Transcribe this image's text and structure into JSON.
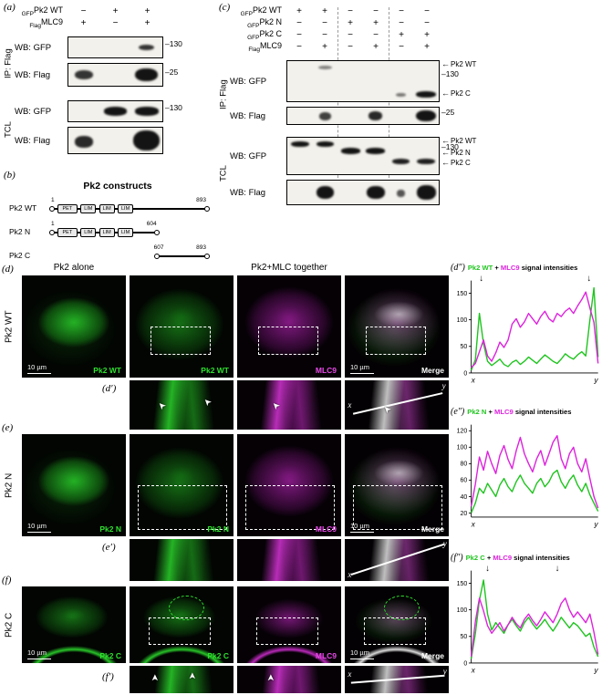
{
  "colors": {
    "green": "#1fc41f",
    "magenta": "#dd22dd"
  },
  "panel_a": {
    "tag": "(a)",
    "header_rows": [
      {
        "sub": "GFP",
        "name": "Pk2 WT",
        "signs": [
          "−",
          "+",
          "+"
        ]
      },
      {
        "sub": "Flag",
        "name": "MLC9",
        "signs": [
          "+",
          "−",
          "+"
        ]
      }
    ],
    "groups": [
      {
        "name": "IP: Flag",
        "blots": [
          {
            "label": "WB: GFP",
            "lanes": 3,
            "bands": [
              {
                "lane": 2,
                "rel_y": 0.5,
                "w": 0.5,
                "h": 0.3,
                "alpha": 0.85
              }
            ],
            "annotations": [
              {
                "kind": "marker",
                "text": "–130",
                "y": 0.3
              }
            ]
          },
          {
            "label": "WB: Flag",
            "lanes": 3,
            "bands": [
              {
                "lane": 0,
                "rel_y": 0.5,
                "w": 0.6,
                "h": 0.42,
                "alpha": 0.85
              },
              {
                "lane": 2,
                "rel_y": 0.5,
                "w": 0.72,
                "h": 0.6,
                "alpha": 1
              }
            ],
            "annotations": [
              {
                "kind": "marker",
                "text": "–25",
                "y": 0.35
              }
            ]
          }
        ]
      },
      {
        "name": "TCL",
        "blots": [
          {
            "label": "WB: GFP",
            "lanes": 3,
            "bands": [
              {
                "lane": 1,
                "rel_y": 0.5,
                "w": 0.75,
                "h": 0.42,
                "alpha": 1
              },
              {
                "lane": 2,
                "rel_y": 0.5,
                "w": 0.75,
                "h": 0.42,
                "alpha": 1
              }
            ],
            "annotations": [
              {
                "kind": "marker",
                "text": "–130",
                "y": 0.3
              }
            ]
          },
          {
            "label": "WB: Flag",
            "lanes": 3,
            "bands": [
              {
                "lane": 0,
                "rel_y": 0.55,
                "w": 0.6,
                "h": 0.45,
                "alpha": 0.9
              },
              {
                "lane": 2,
                "rel_y": 0.5,
                "w": 0.85,
                "h": 0.8,
                "alpha": 1
              }
            ],
            "annotations": []
          }
        ]
      }
    ]
  },
  "panel_b": {
    "tag": "(b)",
    "title": "Pk2 constructs",
    "constructs": [
      {
        "name": "Pk2 WT",
        "start": "1",
        "end": "893",
        "from": 0,
        "to": 1,
        "domains": [
          {
            "t": "PET",
            "f": 0.04,
            "w": 0.13
          },
          {
            "t": "LIM",
            "f": 0.19,
            "w": 0.1
          },
          {
            "t": "LIM",
            "f": 0.31,
            "w": 0.1
          },
          {
            "t": "LIM",
            "f": 0.43,
            "w": 0.1
          }
        ]
      },
      {
        "name": "Pk2 N",
        "start": "1",
        "end": "604",
        "from": 0,
        "to": 0.68,
        "domains": [
          {
            "t": "PET",
            "f": 0.04,
            "w": 0.13
          },
          {
            "t": "LIM",
            "f": 0.19,
            "w": 0.1
          },
          {
            "t": "LIM",
            "f": 0.31,
            "w": 0.1
          },
          {
            "t": "LIM",
            "f": 0.43,
            "w": 0.1
          }
        ]
      },
      {
        "name": "Pk2 C",
        "start": "607",
        "end": "893",
        "from": 0.68,
        "to": 1,
        "domains": []
      }
    ]
  },
  "panel_c": {
    "tag": "(c)",
    "header_rows": [
      {
        "sub": "GFP",
        "name": "Pk2 WT",
        "signs": [
          "+",
          "+",
          "−",
          "−",
          "−",
          "−"
        ]
      },
      {
        "sub": "GFP",
        "name": "Pk2 N",
        "signs": [
          "−",
          "−",
          "+",
          "+",
          "−",
          "−"
        ]
      },
      {
        "sub": "GFP",
        "name": "Pk2 C",
        "signs": [
          "−",
          "−",
          "−",
          "−",
          "+",
          "+"
        ]
      },
      {
        "sub": "Flag",
        "name": "MLC9",
        "signs": [
          "−",
          "+",
          "−",
          "+",
          "−",
          "+"
        ]
      }
    ],
    "groups": [
      {
        "name": "IP: Flag",
        "blots": [
          {
            "label": "WB: GFP",
            "lanes": 6,
            "bands": [
              {
                "lane": 1,
                "rel_y": 0.16,
                "w": 0.55,
                "h": 0.1,
                "alpha": 0.5
              },
              {
                "lane": 4,
                "rel_y": 0.84,
                "w": 0.4,
                "h": 0.09,
                "alpha": 0.55
              },
              {
                "lane": 5,
                "rel_y": 0.82,
                "w": 0.8,
                "h": 0.16,
                "alpha": 1
              }
            ],
            "annotations": [
              {
                "kind": "arrow",
                "text": "Pk2 WT",
                "y": 0.06
              },
              {
                "kind": "marker",
                "text": "–130",
                "y": 0.3
              },
              {
                "kind": "arrow",
                "text": "Pk2 C",
                "y": 0.76
              }
            ]
          },
          {
            "label": "WB: Flag",
            "lanes": 6,
            "bands": [
              {
                "lane": 1,
                "rel_y": 0.5,
                "w": 0.5,
                "h": 0.5,
                "alpha": 0.8
              },
              {
                "lane": 3,
                "rel_y": 0.5,
                "w": 0.55,
                "h": 0.55,
                "alpha": 0.9
              },
              {
                "lane": 5,
                "rel_y": 0.5,
                "w": 0.8,
                "h": 0.7,
                "alpha": 1
              }
            ],
            "annotations": [
              {
                "kind": "marker",
                "text": "–25",
                "y": 0.25
              }
            ]
          }
        ]
      },
      {
        "name": "TCL",
        "blots": [
          {
            "label": "WB: GFP",
            "lanes": 6,
            "bands": [
              {
                "lane": 0,
                "rel_y": 0.18,
                "w": 0.7,
                "h": 0.15,
                "alpha": 1
              },
              {
                "lane": 1,
                "rel_y": 0.18,
                "w": 0.7,
                "h": 0.15,
                "alpha": 1
              },
              {
                "lane": 2,
                "rel_y": 0.36,
                "w": 0.75,
                "h": 0.16,
                "alpha": 1
              },
              {
                "lane": 3,
                "rel_y": 0.36,
                "w": 0.75,
                "h": 0.16,
                "alpha": 1
              },
              {
                "lane": 4,
                "rel_y": 0.66,
                "w": 0.7,
                "h": 0.15,
                "alpha": 0.95
              },
              {
                "lane": 5,
                "rel_y": 0.66,
                "w": 0.7,
                "h": 0.15,
                "alpha": 0.95
              }
            ],
            "annotations": [
              {
                "kind": "arrow",
                "text": "Pk2 WT",
                "y": 0.06
              },
              {
                "kind": "marker",
                "text": "–130",
                "y": 0.24
              },
              {
                "kind": "arrow",
                "text": "Pk2 N",
                "y": 0.38
              },
              {
                "kind": "arrow",
                "text": "Pk2 C",
                "y": 0.64
              }
            ]
          },
          {
            "label": "WB: Flag",
            "lanes": 6,
            "bands": [
              {
                "lane": 1,
                "rel_y": 0.5,
                "w": 0.7,
                "h": 0.55,
                "alpha": 1
              },
              {
                "lane": 3,
                "rel_y": 0.5,
                "w": 0.7,
                "h": 0.55,
                "alpha": 1
              },
              {
                "lane": 4,
                "rel_y": 0.55,
                "w": 0.3,
                "h": 0.3,
                "alpha": 0.7
              },
              {
                "lane": 5,
                "rel_y": 0.5,
                "w": 0.75,
                "h": 0.6,
                "alpha": 1
              }
            ],
            "annotations": []
          }
        ]
      }
    ]
  },
  "microscopy": {
    "header_alone": "Pk2 alone",
    "header_together": "Pk2+MLC together",
    "scale_text": "10 µm",
    "rows": [
      {
        "tag": "(d)",
        "zoom_tag": "(d′)",
        "side_label": "Pk2 WT",
        "labels": {
          "alone": "Pk2 WT",
          "green": "Pk2 WT",
          "magenta": "MLC9",
          "merge": "Merge"
        },
        "profile": {
          "x": "x",
          "y": "y"
        }
      },
      {
        "tag": "(e)",
        "zoom_tag": "(e′)",
        "side_label": "Pk2 N",
        "labels": {
          "alone": "Pk2 N",
          "green": "Pk2 N",
          "magenta": "MLC9",
          "merge": "Merge"
        },
        "profile": {
          "x": "x",
          "y": "y"
        }
      },
      {
        "tag": "(f)",
        "zoom_tag": "(f′)",
        "side_label": "Pk2 C",
        "labels": {
          "alone": "Pk2 C",
          "green": "Pk2 C",
          "magenta": "MLC9",
          "merge": "Merge"
        },
        "profile": {
          "x": "x",
          "y": "y"
        }
      }
    ]
  },
  "chart_data": [
    {
      "type": "line",
      "tag": "(d″)",
      "title_parts": [
        {
          "text": "Pk2 WT",
          "color": "#1fc41f"
        },
        {
          "text": " + ",
          "color": "#000000"
        },
        {
          "text": "MLC9",
          "color": "#dd22dd"
        },
        {
          "text": " signal intensities",
          "color": "#000000"
        }
      ],
      "x_ticks": [
        "x",
        "y"
      ],
      "ylim": [
        0,
        170
      ],
      "y_ticks": [
        0,
        50,
        100,
        150
      ],
      "arrows_x": [
        0.08,
        0.93
      ],
      "legend_position": "title",
      "grid": false,
      "series": [
        {
          "name": "Pk2 WT",
          "color": "#1fc41f",
          "values": [
            5,
            25,
            112,
            55,
            22,
            14,
            20,
            26,
            16,
            12,
            20,
            24,
            16,
            22,
            30,
            24,
            18,
            26,
            34,
            28,
            22,
            18,
            26,
            36,
            30,
            26,
            34,
            40,
            32,
            100,
            160,
            30
          ]
        },
        {
          "name": "MLC9",
          "color": "#dd22dd",
          "values": [
            10,
            18,
            40,
            62,
            32,
            22,
            38,
            58,
            48,
            62,
            92,
            102,
            86,
            96,
            112,
            102,
            92,
            106,
            116,
            102,
            96,
            112,
            106,
            116,
            122,
            112,
            126,
            138,
            152,
            122,
            95,
            18
          ]
        }
      ]
    },
    {
      "type": "line",
      "tag": "(e″)",
      "title_parts": [
        {
          "text": "Pk2 N",
          "color": "#1fc41f"
        },
        {
          "text": " + ",
          "color": "#000000"
        },
        {
          "text": "MLC9",
          "color": "#dd22dd"
        },
        {
          "text": " signal intensities",
          "color": "#000000"
        }
      ],
      "x_ticks": [
        "x",
        "y"
      ],
      "ylim": [
        15,
        125
      ],
      "y_ticks": [
        20,
        40,
        60,
        80,
        100,
        120
      ],
      "arrows_x": [],
      "legend_position": "title",
      "grid": false,
      "series": [
        {
          "name": "MLC9",
          "color": "#dd22dd",
          "values": [
            28,
            55,
            88,
            72,
            95,
            80,
            68,
            90,
            102,
            85,
            74,
            96,
            112,
            92,
            80,
            70,
            86,
            96,
            78,
            92,
            106,
            114,
            86,
            74,
            92,
            100,
            80,
            70,
            86,
            62,
            40,
            26
          ]
        },
        {
          "name": "Pk2 N",
          "color": "#1fc41f",
          "values": [
            20,
            32,
            50,
            44,
            56,
            48,
            40,
            54,
            62,
            52,
            46,
            58,
            66,
            56,
            50,
            44,
            56,
            62,
            52,
            58,
            68,
            72,
            58,
            50,
            60,
            66,
            54,
            46,
            56,
            42,
            32,
            22
          ]
        }
      ]
    },
    {
      "type": "line",
      "tag": "(f″)",
      "title_parts": [
        {
          "text": "Pk2 C",
          "color": "#1fc41f"
        },
        {
          "text": " + ",
          "color": "#000000"
        },
        {
          "text": "MLC9",
          "color": "#dd22dd"
        },
        {
          "text": " signal intensities",
          "color": "#000000"
        }
      ],
      "x_ticks": [
        "x",
        "y"
      ],
      "ylim": [
        0,
        170
      ],
      "y_ticks": [
        0,
        50,
        100,
        150
      ],
      "arrows_x": [
        0.13,
        0.68
      ],
      "legend_position": "title",
      "grid": false,
      "series": [
        {
          "name": "Pk2 C",
          "color": "#1fc41f",
          "values": [
            8,
            55,
            118,
            156,
            92,
            62,
            76,
            66,
            56,
            72,
            82,
            70,
            60,
            76,
            86,
            74,
            64,
            72,
            82,
            70,
            60,
            72,
            86,
            76,
            66,
            76,
            70,
            60,
            50,
            56,
            30,
            12
          ]
        },
        {
          "name": "MLC9",
          "color": "#dd22dd",
          "values": [
            12,
            78,
            122,
            98,
            70,
            56,
            66,
            76,
            60,
            72,
            86,
            74,
            66,
            82,
            92,
            80,
            70,
            82,
            96,
            86,
            76,
            92,
            112,
            122,
            100,
            86,
            96,
            86,
            76,
            92,
            58,
            16
          ]
        }
      ]
    }
  ]
}
